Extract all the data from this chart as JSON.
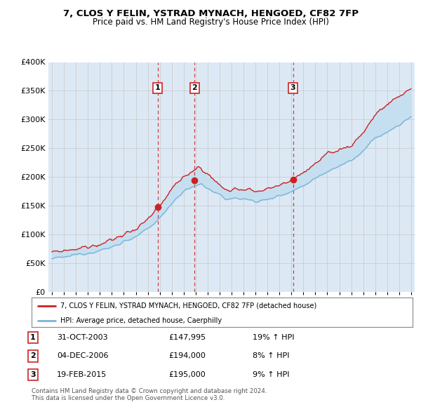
{
  "title": "7, CLOS Y FELIN, YSTRAD MYNACH, HENGOED, CF82 7FP",
  "subtitle": "Price paid vs. HM Land Registry's House Price Index (HPI)",
  "legend_line1": "7, CLOS Y FELIN, YSTRAD MYNACH, HENGOED, CF82 7FP (detached house)",
  "legend_line2": "HPI: Average price, detached house, Caerphilly",
  "footer1": "Contains HM Land Registry data © Crown copyright and database right 2024.",
  "footer2": "This data is licensed under the Open Government Licence v3.0.",
  "transactions": [
    {
      "num": 1,
      "date": "31-OCT-2003",
      "price": "£147,995",
      "hpi": "19% ↑ HPI",
      "x_year": 2003.83,
      "y_val": 147995
    },
    {
      "num": 2,
      "date": "04-DEC-2006",
      "price": "£194,000",
      "hpi": "8% ↑ HPI",
      "x_year": 2006.92,
      "y_val": 194000
    },
    {
      "num": 3,
      "date": "19-FEB-2015",
      "price": "£195,000",
      "hpi": "9% ↑ HPI",
      "x_year": 2015.13,
      "y_val": 195000
    }
  ],
  "hpi_color": "#7ab4d8",
  "price_color": "#cc2222",
  "fill_color": "#c6dff0",
  "background_color": "#dce9f5",
  "plot_bg": "#ffffff",
  "ylim": [
    0,
    400000
  ],
  "yticks": [
    0,
    50000,
    100000,
    150000,
    200000,
    250000,
    300000,
    350000,
    400000
  ],
  "xlim_start": 1994.7,
  "xlim_end": 2025.3,
  "xticks": [
    1995,
    1996,
    1997,
    1998,
    1999,
    2000,
    2001,
    2002,
    2003,
    2004,
    2005,
    2006,
    2007,
    2008,
    2009,
    2010,
    2011,
    2012,
    2013,
    2014,
    2015,
    2016,
    2017,
    2018,
    2019,
    2020,
    2021,
    2022,
    2023,
    2024,
    2025
  ]
}
